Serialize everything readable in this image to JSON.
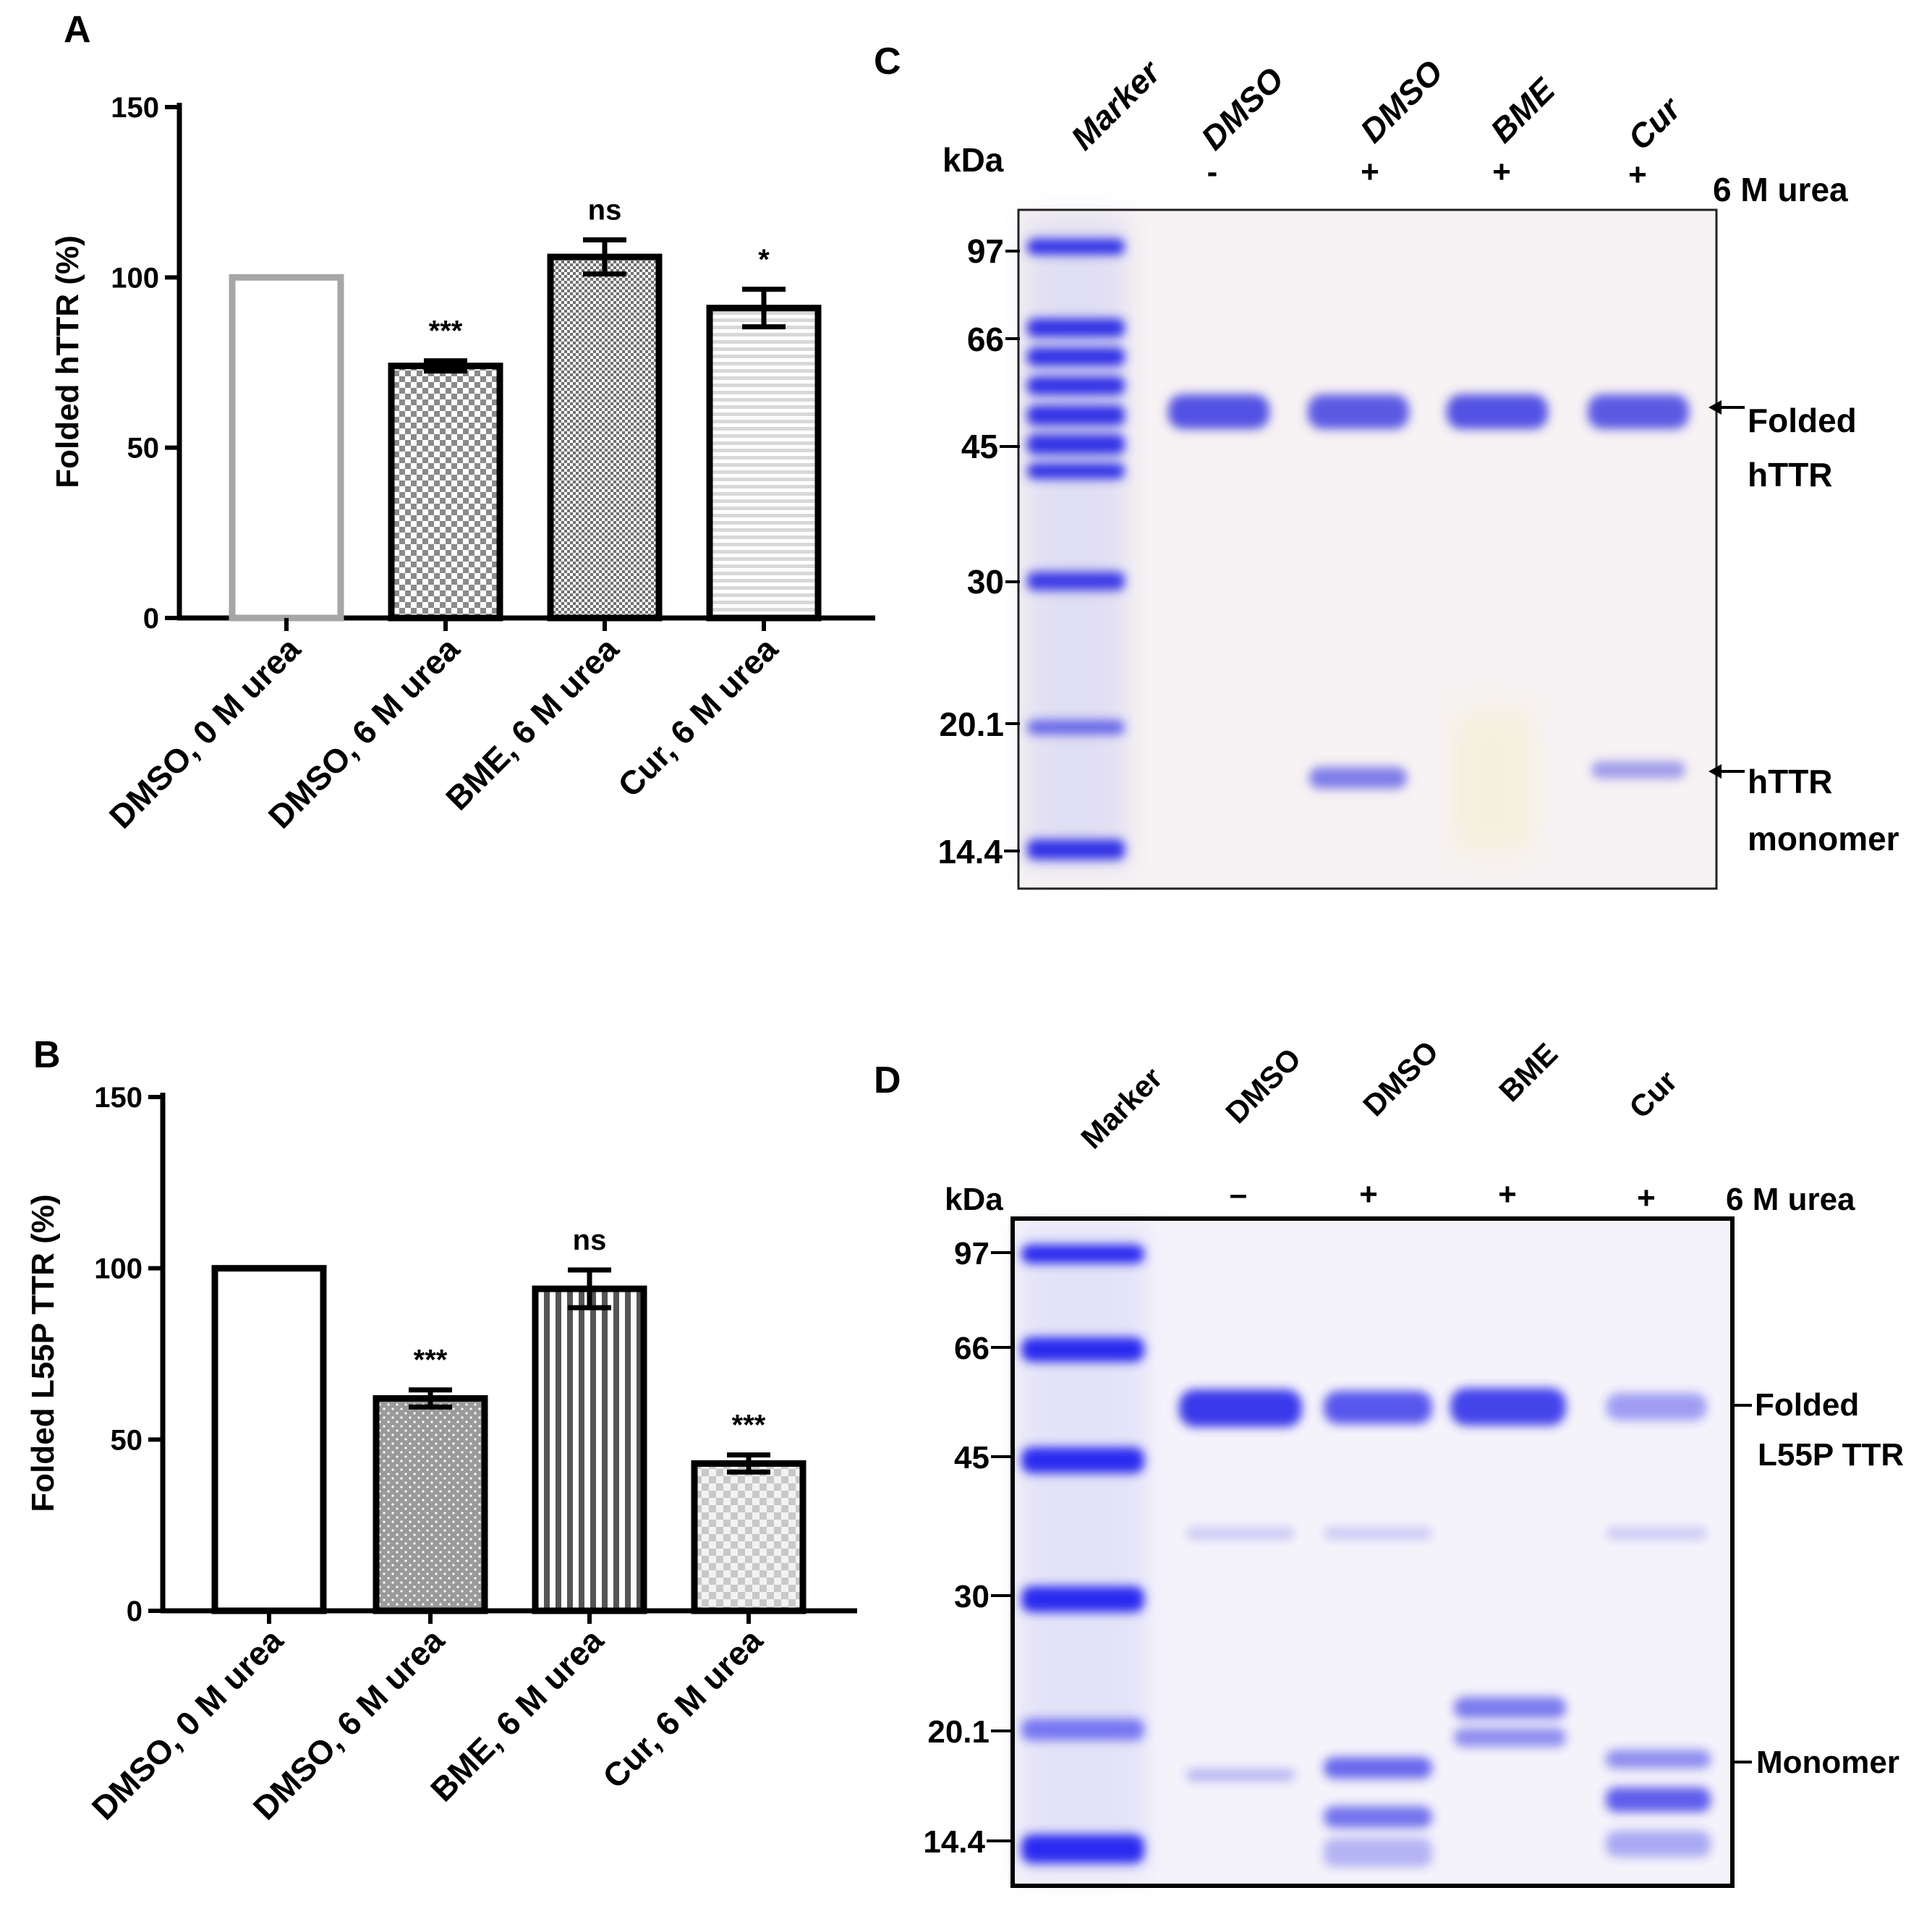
{
  "panels": {
    "a": "A",
    "b": "B",
    "c": "C",
    "d": "D"
  },
  "chart_data": [
    {
      "type": "bar",
      "panel": "A",
      "title": "",
      "xlabel": "",
      "ylabel": "Folded hTTR (%)",
      "ylim": [
        0,
        150
      ],
      "yticks": [
        "0",
        "50",
        "100",
        "150"
      ],
      "categories": [
        "DMSO, 0 M urea",
        "DMSO, 6 M urea",
        "BME, 6 M urea",
        "Cur, 6 M urea"
      ],
      "values": [
        100,
        74,
        106,
        91
      ],
      "errors": [
        0,
        1.5,
        5,
        5.5
      ],
      "significance": [
        "",
        "***",
        "ns",
        "*"
      ],
      "colors": {
        "outline_first": "#a6a6a6",
        "outline": "#000000"
      }
    },
    {
      "type": "bar",
      "panel": "B",
      "title": "",
      "xlabel": "",
      "ylabel": "Folded L55P TTR (%)",
      "ylim": [
        0,
        150
      ],
      "yticks": [
        "0",
        "50",
        "100",
        "150"
      ],
      "categories": [
        "DMSO, 0 M urea",
        "DMSO, 6 M urea",
        "BME, 6 M urea",
        "Cur, 6 M urea"
      ],
      "values": [
        100,
        62,
        94,
        43
      ],
      "errors": [
        0,
        2.5,
        5.5,
        2.5
      ],
      "significance": [
        "",
        "***",
        "ns",
        "***"
      ],
      "colors": {
        "outline": "#000000"
      }
    }
  ],
  "gel_c": {
    "kda_label": "kDa",
    "urea_label": "6 M urea",
    "lanes": [
      "Marker",
      "DMSO",
      "DMSO",
      "BME",
      "Cur"
    ],
    "signs": [
      "-",
      "+",
      "+",
      "+"
    ],
    "markers": [
      "97",
      "66",
      "45",
      "30",
      "20.1",
      "14.4"
    ],
    "annotations": {
      "folded_line1": "Folded",
      "folded_line2": "hTTR",
      "monomer_line1": "hTTR",
      "monomer_line2": "monomer"
    },
    "colors": {
      "band": "#3a3ae0",
      "background": "#f7f2f3"
    }
  },
  "gel_d": {
    "kda_label": "kDa",
    "urea_label": "6 M urea",
    "lanes": [
      "Marker",
      "DMSO",
      "DMSO",
      "BME",
      "Cur"
    ],
    "signs": [
      "–",
      "+",
      "+",
      "+"
    ],
    "markers": [
      "97",
      "66",
      "45",
      "30",
      "20.1",
      "14.4"
    ],
    "annotations": {
      "folded_line1": "Folded",
      "folded_line2": "L55P TTR",
      "monomer": "Monomer"
    },
    "colors": {
      "band": "#2c2cf0",
      "background": "#f5f3fa"
    }
  }
}
